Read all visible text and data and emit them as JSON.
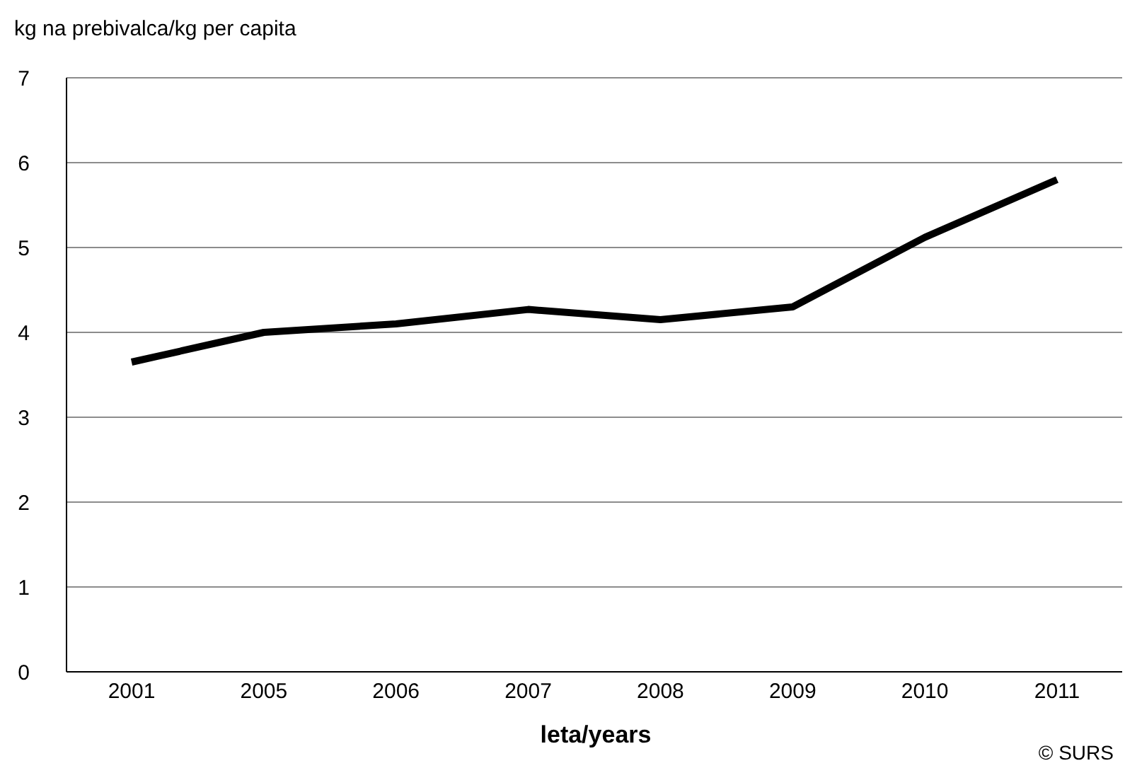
{
  "chart_data": {
    "type": "line",
    "ylabel": "kg na prebivalca/kg per capita",
    "xlabel": "leta/years",
    "annotations": [
      "© SURS"
    ],
    "categories": [
      "2001",
      "2005",
      "2006",
      "2007",
      "2008",
      "2009",
      "2010",
      "2011"
    ],
    "series": [
      {
        "color": "#000000",
        "values": [
          3.65,
          4.0,
          4.1,
          4.27,
          4.15,
          4.3,
          5.12,
          5.8
        ]
      }
    ],
    "ylim": [
      0,
      7
    ],
    "yticks": [
      0,
      1,
      2,
      3,
      4,
      5,
      6,
      7
    ],
    "grid": "y",
    "legend": false,
    "marker": "none",
    "line_style": "solid"
  }
}
